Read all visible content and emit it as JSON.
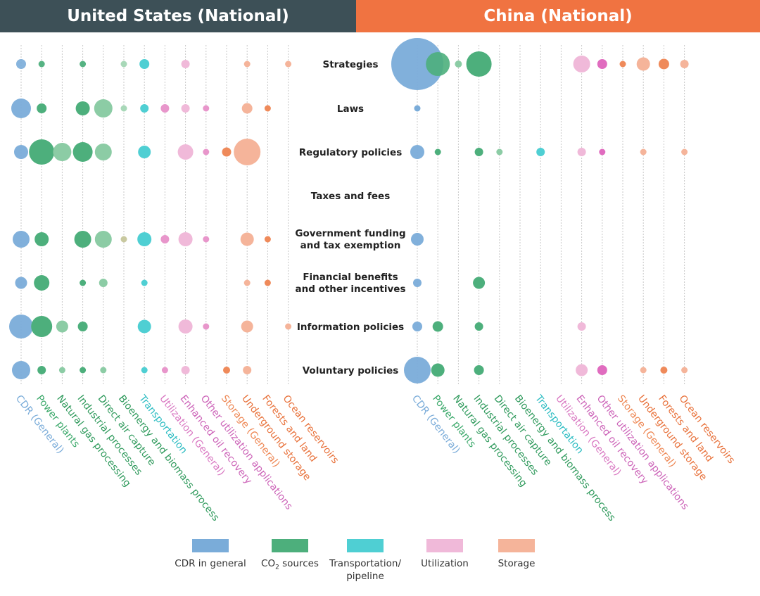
{
  "headers": {
    "left": {
      "label": "United States (National)",
      "color": "#3d5057"
    },
    "right": {
      "label": "China (National)",
      "color": "#f07341"
    }
  },
  "legend": [
    {
      "key": "cdr",
      "label": "CDR in general",
      "color": "#7aacd9"
    },
    {
      "key": "co2",
      "label": "CO",
      "sub": "2",
      "label_after": " sources",
      "color": "#4daf7c"
    },
    {
      "key": "transport",
      "label": "Transportation/",
      "label2": "pipeline",
      "color": "#4fcfd3"
    },
    {
      "key": "util",
      "label": "Utilization",
      "color": "#f0b9d9"
    },
    {
      "key": "storage",
      "label": "Storage",
      "color": "#f5b49a"
    }
  ],
  "chart_data": {
    "type": "scatter",
    "title": "",
    "panels": [
      "United States (National)",
      "China (National)"
    ],
    "rows": [
      "Strategies",
      "Laws",
      "Regulatory policies",
      "Taxes and fees",
      "Government funding\nand tax exemption",
      "Financial benefits\nand other incentives",
      "Information policies",
      "Voluntary policies"
    ],
    "columns": [
      {
        "label": "CDR (General)",
        "color": "#7aacd9"
      },
      {
        "label": "Power plants",
        "color": "#3ca96b"
      },
      {
        "label": "Natural gas processing",
        "color": "#2f9a5c"
      },
      {
        "label": "Industrial processes",
        "color": "#2f9a5c"
      },
      {
        "label": "Direct air capture",
        "color": "#2f9a5c"
      },
      {
        "label": "Bioenergy and biomass process",
        "color": "#2f9a5c"
      },
      {
        "label": "Transportation",
        "color": "#2bbcc2"
      },
      {
        "label": "Utilization (General)",
        "color": "#d978c2"
      },
      {
        "label": "Enhanced oil recovery",
        "color": "#cc63b8"
      },
      {
        "label": "Other utilization applications",
        "color": "#cc63b8"
      },
      {
        "label": "Storage (General)",
        "color": "#ee8855"
      },
      {
        "label": "Underground storage",
        "color": "#e8713a"
      },
      {
        "label": "Forests and land",
        "color": "#e8713a"
      },
      {
        "label": "Ocean reservoirs",
        "color": "#e8713a"
      }
    ],
    "size_note": "bubble area proportional to count",
    "bubbles": {
      "us": [
        [
          [
            0,
            7,
            "#7aacd9",
            0.9
          ],
          [
            1,
            4.5,
            "#4daf7c",
            0.95
          ],
          [
            3,
            4.5,
            "#4daf7c",
            0.95
          ],
          [
            5,
            4.5,
            "#a8d8b8",
            1
          ],
          [
            6,
            7,
            "#4fcfd3",
            1
          ],
          [
            8,
            6,
            "#f0b9d9",
            1
          ],
          [
            11,
            4.5,
            "#f5b49a",
            1
          ],
          [
            13,
            4.5,
            "#f5b49a",
            1
          ]
        ],
        [
          [
            0,
            14,
            "#7aacd9",
            0.95
          ],
          [
            1,
            7,
            "#4daf7c",
            1
          ],
          [
            3,
            10,
            "#4daf7c",
            1
          ],
          [
            4,
            13,
            "#8ccca5",
            1
          ],
          [
            5,
            4.5,
            "#a8d8b8",
            1
          ],
          [
            6,
            6,
            "#4fcfd3",
            1
          ],
          [
            7,
            6,
            "#e896cb",
            1
          ],
          [
            8,
            6,
            "#f0b9d9",
            1
          ],
          [
            9,
            4.5,
            "#e896cb",
            1
          ],
          [
            11,
            7.5,
            "#f5b49a",
            1
          ],
          [
            12,
            4.5,
            "#ef8a5a",
            1
          ]
        ],
        [
          [
            0,
            10,
            "#7aacd9",
            0.95
          ],
          [
            1,
            18,
            "#4daf7c",
            1
          ],
          [
            2,
            13,
            "#8ccca5",
            1
          ],
          [
            3,
            14,
            "#4daf7c",
            1
          ],
          [
            4,
            12,
            "#8ccca5",
            1
          ],
          [
            6,
            9,
            "#4fcfd3",
            1
          ],
          [
            8,
            11,
            "#f0b9d9",
            1
          ],
          [
            9,
            4.5,
            "#e896cb",
            1
          ],
          [
            10,
            6.5,
            "#ef8a5a",
            1
          ],
          [
            11,
            19,
            "#f5b49a",
            1
          ]
        ],
        [],
        [
          [
            0,
            12,
            "#7aacd9",
            0.95
          ],
          [
            1,
            10,
            "#4daf7c",
            1
          ],
          [
            3,
            12,
            "#4daf7c",
            1
          ],
          [
            4,
            12,
            "#8ccca5",
            1
          ],
          [
            5,
            4.5,
            "#c9c9a0",
            1
          ],
          [
            6,
            10,
            "#4fcfd3",
            1
          ],
          [
            7,
            6,
            "#e896cb",
            1
          ],
          [
            8,
            10,
            "#f0b9d9",
            1
          ],
          [
            9,
            4.5,
            "#e896cb",
            1
          ],
          [
            11,
            9.5,
            "#f5b49a",
            1
          ],
          [
            12,
            4.5,
            "#ef8a5a",
            1
          ]
        ],
        [
          [
            0,
            8.5,
            "#7aacd9",
            0.95
          ],
          [
            1,
            11,
            "#4daf7c",
            1
          ],
          [
            3,
            4.5,
            "#4daf7c",
            1
          ],
          [
            4,
            6,
            "#8ccca5",
            1
          ],
          [
            6,
            4.5,
            "#4fcfd3",
            1
          ],
          [
            11,
            4.5,
            "#f5b49a",
            1
          ],
          [
            12,
            4.5,
            "#ef8a5a",
            1
          ]
        ],
        [
          [
            0,
            17,
            "#7aacd9",
            0.95
          ],
          [
            1,
            15,
            "#4daf7c",
            1
          ],
          [
            2,
            8.5,
            "#8ccca5",
            1
          ],
          [
            3,
            7,
            "#4daf7c",
            1
          ],
          [
            6,
            9.5,
            "#4fcfd3",
            1
          ],
          [
            8,
            10,
            "#f0b9d9",
            1
          ],
          [
            9,
            4.5,
            "#e896cb",
            1
          ],
          [
            11,
            8.5,
            "#f5b49a",
            1
          ],
          [
            13,
            4.5,
            "#f5b49a",
            1
          ]
        ],
        [
          [
            0,
            13,
            "#7aacd9",
            0.95
          ],
          [
            1,
            6,
            "#4daf7c",
            1
          ],
          [
            2,
            4.5,
            "#8ccca5",
            1
          ],
          [
            3,
            4.5,
            "#4daf7c",
            1
          ],
          [
            4,
            4.5,
            "#8ccca5",
            1
          ],
          [
            6,
            4.5,
            "#4fcfd3",
            1
          ],
          [
            7,
            4.5,
            "#e896cb",
            1
          ],
          [
            8,
            6,
            "#f0b9d9",
            1
          ],
          [
            10,
            5,
            "#ef8a5a",
            1
          ],
          [
            11,
            6,
            "#f5b49a",
            1
          ]
        ]
      ],
      "cn": [
        [
          [
            0,
            37,
            "#7aacd9",
            0.95
          ],
          [
            1,
            17,
            "#4daf7c",
            0.9
          ],
          [
            2,
            5,
            "#8ccca5",
            1
          ],
          [
            3,
            18,
            "#4daf7c",
            1
          ],
          [
            8,
            12,
            "#f0b9d9",
            1
          ],
          [
            9,
            7,
            "#e06cbf",
            1
          ],
          [
            10,
            4.5,
            "#ef8a5a",
            1
          ],
          [
            11,
            9.5,
            "#f5b49a",
            1
          ],
          [
            12,
            7.5,
            "#ef8a5a",
            1
          ],
          [
            13,
            6,
            "#f5b49a",
            1
          ]
        ],
        [
          [
            0,
            4.5,
            "#7aacd9",
            1
          ]
        ],
        [
          [
            0,
            10,
            "#7aacd9",
            0.95
          ],
          [
            1,
            4.5,
            "#4daf7c",
            1
          ],
          [
            3,
            6,
            "#4daf7c",
            1
          ],
          [
            4,
            4.5,
            "#8ccca5",
            1
          ],
          [
            6,
            6,
            "#4fcfd3",
            1
          ],
          [
            8,
            6,
            "#f0b9d9",
            1
          ],
          [
            9,
            4.5,
            "#e06cbf",
            1
          ],
          [
            11,
            4.5,
            "#f5b49a",
            1
          ],
          [
            13,
            4.5,
            "#f5b49a",
            1
          ]
        ],
        [],
        [
          [
            0,
            9,
            "#7aacd9",
            0.95
          ]
        ],
        [
          [
            0,
            6,
            "#7aacd9",
            0.95
          ],
          [
            3,
            8.5,
            "#4daf7c",
            1
          ]
        ],
        [
          [
            0,
            7,
            "#7aacd9",
            0.95
          ],
          [
            1,
            7.5,
            "#4daf7c",
            1
          ],
          [
            3,
            6,
            "#4daf7c",
            1
          ],
          [
            8,
            6,
            "#f0b9d9",
            1
          ]
        ],
        [
          [
            0,
            19,
            "#7aacd9",
            0.95
          ],
          [
            1,
            9.5,
            "#4daf7c",
            1
          ],
          [
            3,
            7,
            "#4daf7c",
            1
          ],
          [
            8,
            8.5,
            "#f0b9d9",
            1
          ],
          [
            9,
            7,
            "#e06cbf",
            1
          ],
          [
            11,
            4.5,
            "#f5b49a",
            1
          ],
          [
            12,
            5,
            "#ef8a5a",
            1
          ],
          [
            13,
            4.5,
            "#f5b49a",
            1
          ]
        ]
      ]
    }
  }
}
